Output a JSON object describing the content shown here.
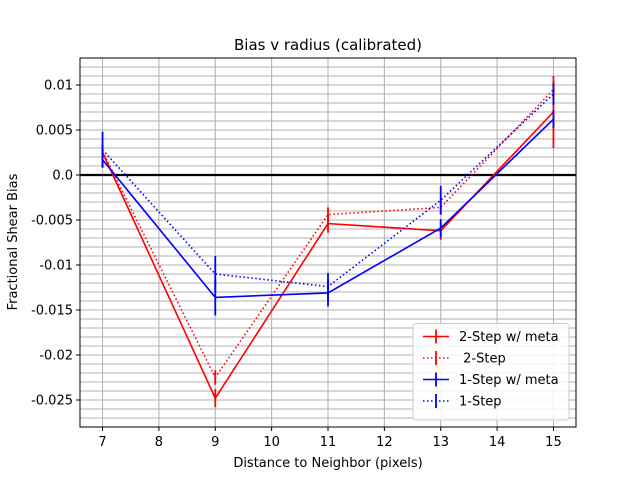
{
  "chart_data": {
    "type": "line",
    "title": "Bias v radius (calibrated)",
    "xlabel": "Distance to Neighbor (pixels)",
    "ylabel": "Fractional Shear Bias",
    "xlim": [
      6.6,
      15.4
    ],
    "ylim": [
      -0.028,
      0.013
    ],
    "x_ticks": [
      7,
      8,
      9,
      10,
      11,
      12,
      13,
      14,
      15
    ],
    "x_tick_labels": [
      "7",
      "8",
      "9",
      "10",
      "11",
      "12",
      "13",
      "14",
      "15"
    ],
    "y_ticks": [
      -0.025,
      -0.02,
      -0.015,
      -0.01,
      -0.005,
      0,
      0.005,
      0.01
    ],
    "y_tick_labels": [
      "-0.025",
      "-0.02",
      "-0.015",
      "-0.01",
      "-0.005",
      "0.0",
      "0.005",
      "0.01"
    ],
    "grid": true,
    "reference_line_y": 0,
    "legend_position": "lower-right",
    "x": [
      7,
      9,
      11,
      13,
      15
    ],
    "series": [
      {
        "name": "2-Step w/ meta",
        "color": "#ff0000",
        "linestyle": "solid",
        "values": [
          0.0025,
          -0.0248,
          -0.0054,
          -0.0062,
          0.007
        ],
        "errors": [
          0.0008,
          0.001,
          0.001,
          0.001,
          0.004
        ]
      },
      {
        "name": " 2-Step",
        "color": "#ff0000",
        "linestyle": "dotted",
        "values": [
          0.0026,
          -0.0225,
          -0.0044,
          -0.0036,
          0.0095
        ],
        "errors": [
          0.0008,
          0.0008,
          0.0008,
          0.0008,
          0.001
        ]
      },
      {
        "name": "1-Step w/ meta",
        "color": "#0000ff",
        "linestyle": "solid",
        "values": [
          0.0017,
          -0.0136,
          -0.0131,
          -0.0059,
          0.0062
        ],
        "errors": [
          0.0008,
          0.002,
          0.0015,
          0.001,
          0.001
        ]
      },
      {
        "name": "1-Step",
        "color": "#0000ff",
        "linestyle": "dotted",
        "values": [
          0.0028,
          -0.011,
          -0.0124,
          -0.0028,
          0.009
        ],
        "errors": [
          0.002,
          0.002,
          0.0015,
          0.0016,
          0.0012
        ]
      }
    ]
  }
}
